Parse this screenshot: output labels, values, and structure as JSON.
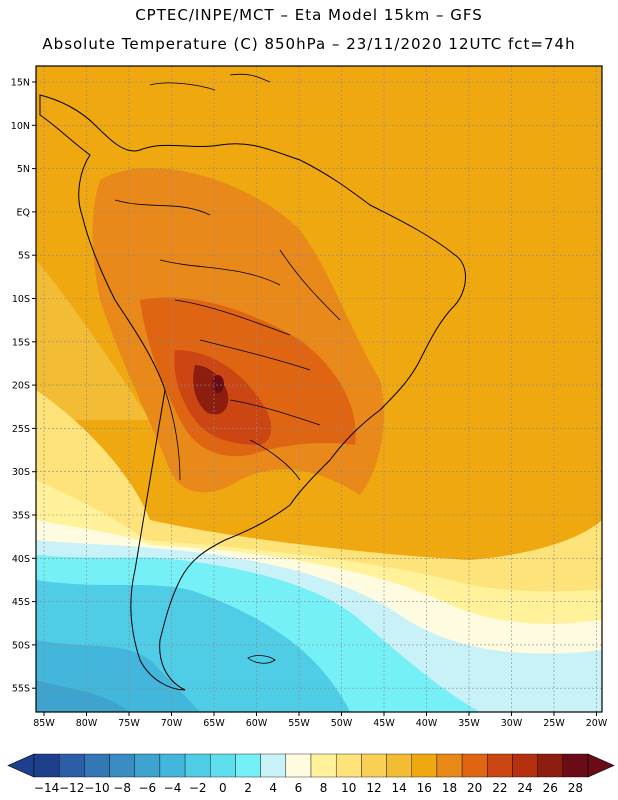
{
  "header": {
    "line1": "CPTEC/INPE/MCT –  Eta Model 15km – GFS",
    "line2": "Absolute Temperature (C) 850hPa – 23/11/2020 12UTC fct=74h"
  },
  "map": {
    "lat_labels": [
      "15N",
      "10N",
      "5N",
      "EQ",
      "5S",
      "10S",
      "15S",
      "20S",
      "25S",
      "30S",
      "35S",
      "40S",
      "45S",
      "50S",
      "55S"
    ],
    "lon_labels": [
      "85W",
      "80W",
      "75W",
      "70W",
      "65W",
      "60W",
      "55W",
      "50W",
      "45W",
      "40W",
      "35W",
      "30W",
      "25W",
      "20W"
    ],
    "background_color": "#f0a810",
    "coast_color": "#000000"
  },
  "colorbar": {
    "labels": [
      "-14",
      "-12",
      "-10",
      "-8",
      "-6",
      "-4",
      "-2",
      "0",
      "2",
      "4",
      "6",
      "8",
      "10",
      "12",
      "14",
      "16",
      "18",
      "20",
      "22",
      "24",
      "26",
      "28"
    ],
    "colors": [
      "#1e3f8c",
      "#2b5ea4",
      "#3377b5",
      "#3a8cc2",
      "#3ea3cf",
      "#43b7db",
      "#4fcce6",
      "#5fdfee",
      "#74f0f6",
      "#c8f2f8",
      "#fffbe0",
      "#fff29a",
      "#fde37a",
      "#f9cf55",
      "#f3bc35",
      "#f0a810",
      "#e9891a",
      "#df6512",
      "#cb4612",
      "#b4300f",
      "#8d1d0f",
      "#6a0c18"
    ]
  }
}
